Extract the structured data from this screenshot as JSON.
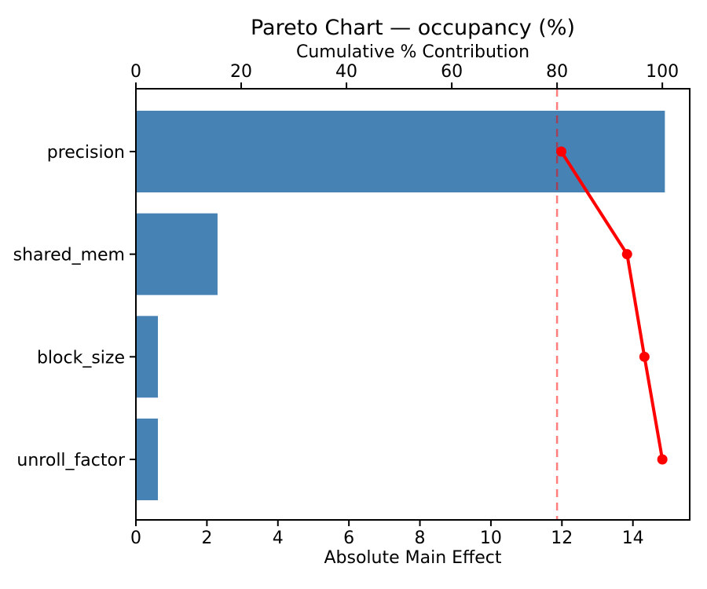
{
  "chart_data": {
    "type": "bar",
    "subtype": "pareto-horizontal-with-cumulative-line",
    "title": "Pareto Chart — occupancy (%)",
    "xlabel_top": "Cumulative % Contribution",
    "xlabel_bottom": "Absolute Main Effect",
    "categories": [
      "precision",
      "shared_mem",
      "block_size",
      "unroll_factor"
    ],
    "bar_values": [
      14.9,
      2.3,
      0.62,
      0.62
    ],
    "cumulative_pct": [
      80.8,
      93.3,
      96.6,
      100.0
    ],
    "threshold_pct": 80,
    "x_ticks_bottom": [
      0,
      2,
      4,
      6,
      8,
      10,
      12,
      14
    ],
    "x_ticks_top": [
      0,
      20,
      40,
      60,
      80,
      100
    ],
    "xlim_bottom": [
      0,
      15.6
    ],
    "xlim_top": [
      0,
      105.2
    ],
    "grid": false,
    "legend": null,
    "bar_color": "#4682b4",
    "line_color": "#ff0000",
    "threshold_color": "#ff0000",
    "text_color": "#000000",
    "axis_color": "#000000"
  }
}
